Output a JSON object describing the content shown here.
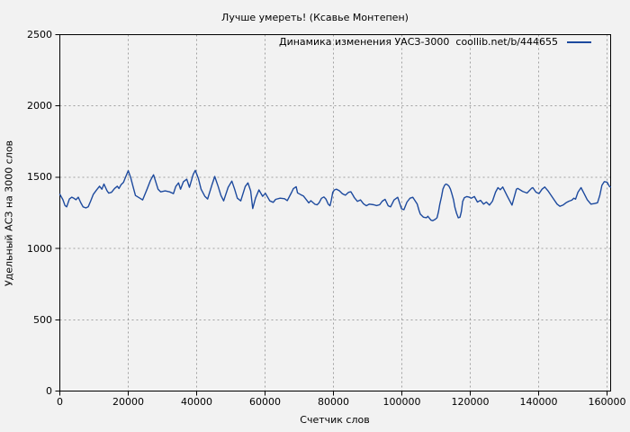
{
  "page": {
    "background": "#f2f2f2"
  },
  "chart_data": {
    "type": "line",
    "title": "Лучше умереть! (Ксавье Монтепен)",
    "xlabel": "Счетчик слов",
    "ylabel": "Удельный АСЗ на 3000 слов",
    "legend_label": "Динамика изменения УАСЗ-3000  coollib.net/b/444655",
    "legend_position": "top-right-inside",
    "grid": true,
    "xlim": [
      0,
      161000
    ],
    "ylim": [
      0,
      2500
    ],
    "xticks": [
      0,
      20000,
      40000,
      60000,
      80000,
      100000,
      120000,
      140000,
      160000
    ],
    "xtick_labels": [
      "0",
      "20000",
      "40000",
      "60000",
      "80000",
      "100000",
      "120000",
      "140000",
      "160000"
    ],
    "yticks": [
      0,
      500,
      1000,
      1500,
      2000,
      2500
    ],
    "ytick_labels": [
      "0",
      "500",
      "1000",
      "1500",
      "2000",
      "2500"
    ],
    "colors": {
      "line": "#1d4a9e",
      "grid": "#a0a0a0",
      "border": "#000000",
      "text": "#000000",
      "background": "#f2f2f2"
    },
    "series": [
      {
        "name": "Динамика изменения УАСЗ-3000 coollib.net/b/444655",
        "points": [
          [
            0,
            1380
          ],
          [
            900,
            1342
          ],
          [
            1500,
            1302
          ],
          [
            2000,
            1292
          ],
          [
            2800,
            1347
          ],
          [
            3500,
            1360
          ],
          [
            4100,
            1352
          ],
          [
            4700,
            1342
          ],
          [
            5400,
            1360
          ],
          [
            6100,
            1322
          ],
          [
            6800,
            1292
          ],
          [
            7600,
            1285
          ],
          [
            8300,
            1292
          ],
          [
            9000,
            1332
          ],
          [
            9800,
            1380
          ],
          [
            10700,
            1410
          ],
          [
            11600,
            1437
          ],
          [
            12300,
            1416
          ],
          [
            12900,
            1452
          ],
          [
            13800,
            1405
          ],
          [
            14300,
            1388
          ],
          [
            15100,
            1394
          ],
          [
            16000,
            1421
          ],
          [
            16800,
            1437
          ],
          [
            17300,
            1421
          ],
          [
            17900,
            1447
          ],
          [
            18600,
            1464
          ],
          [
            19300,
            1505
          ],
          [
            20000,
            1546
          ],
          [
            20700,
            1498
          ],
          [
            21400,
            1435
          ],
          [
            22100,
            1372
          ],
          [
            23400,
            1353
          ],
          [
            24200,
            1341
          ],
          [
            25500,
            1416
          ],
          [
            26500,
            1478
          ],
          [
            27400,
            1517
          ],
          [
            28700,
            1416
          ],
          [
            29500,
            1397
          ],
          [
            30800,
            1404
          ],
          [
            32100,
            1397
          ],
          [
            33200,
            1385
          ],
          [
            33900,
            1435
          ],
          [
            34700,
            1460
          ],
          [
            35300,
            1416
          ],
          [
            36100,
            1467
          ],
          [
            37100,
            1486
          ],
          [
            37900,
            1429
          ],
          [
            39000,
            1520
          ],
          [
            39600,
            1548
          ],
          [
            40500,
            1492
          ],
          [
            41300,
            1416
          ],
          [
            42400,
            1366
          ],
          [
            43200,
            1347
          ],
          [
            44500,
            1448
          ],
          [
            45300,
            1505
          ],
          [
            46300,
            1435
          ],
          [
            47100,
            1372
          ],
          [
            47900,
            1334
          ],
          [
            49200,
            1429
          ],
          [
            50300,
            1473
          ],
          [
            51100,
            1416
          ],
          [
            51900,
            1353
          ],
          [
            52900,
            1334
          ],
          [
            54200,
            1435
          ],
          [
            55000,
            1460
          ],
          [
            55800,
            1404
          ],
          [
            56400,
            1280
          ],
          [
            57200,
            1353
          ],
          [
            58200,
            1411
          ],
          [
            59300,
            1366
          ],
          [
            60100,
            1387
          ],
          [
            61400,
            1334
          ],
          [
            62400,
            1324
          ],
          [
            63100,
            1345
          ],
          [
            64400,
            1353
          ],
          [
            65700,
            1349
          ],
          [
            66500,
            1336
          ],
          [
            67800,
            1395
          ],
          [
            68300,
            1420
          ],
          [
            69100,
            1433
          ],
          [
            69500,
            1390
          ],
          [
            70400,
            1378
          ],
          [
            71200,
            1369
          ],
          [
            72100,
            1341
          ],
          [
            72800,
            1320
          ],
          [
            73400,
            1335
          ],
          [
            74600,
            1310
          ],
          [
            75200,
            1306
          ],
          [
            75800,
            1320
          ],
          [
            76500,
            1352
          ],
          [
            77200,
            1362
          ],
          [
            77800,
            1347
          ],
          [
            78500,
            1310
          ],
          [
            79000,
            1300
          ],
          [
            79400,
            1341
          ],
          [
            79800,
            1394
          ],
          [
            80300,
            1411
          ],
          [
            80900,
            1416
          ],
          [
            81700,
            1405
          ],
          [
            82600,
            1384
          ],
          [
            83500,
            1374
          ],
          [
            84400,
            1394
          ],
          [
            85100,
            1398
          ],
          [
            85700,
            1374
          ],
          [
            86100,
            1357
          ],
          [
            87000,
            1331
          ],
          [
            87900,
            1341
          ],
          [
            88800,
            1314
          ],
          [
            89600,
            1300
          ],
          [
            90500,
            1311
          ],
          [
            91800,
            1307
          ],
          [
            92600,
            1301
          ],
          [
            93500,
            1307
          ],
          [
            94300,
            1332
          ],
          [
            95100,
            1345
          ],
          [
            96000,
            1300
          ],
          [
            96700,
            1292
          ],
          [
            97700,
            1340
          ],
          [
            98800,
            1359
          ],
          [
            99900,
            1279
          ],
          [
            100600,
            1272
          ],
          [
            101500,
            1326
          ],
          [
            102400,
            1353
          ],
          [
            103200,
            1359
          ],
          [
            104500,
            1311
          ],
          [
            105000,
            1269
          ],
          [
            105400,
            1241
          ],
          [
            106300,
            1220
          ],
          [
            107200,
            1216
          ],
          [
            107600,
            1226
          ],
          [
            108100,
            1211
          ],
          [
            108500,
            1199
          ],
          [
            109000,
            1195
          ],
          [
            109800,
            1205
          ],
          [
            110300,
            1216
          ],
          [
            110700,
            1258
          ],
          [
            111100,
            1311
          ],
          [
            111600,
            1364
          ],
          [
            112000,
            1416
          ],
          [
            112500,
            1443
          ],
          [
            112900,
            1452
          ],
          [
            113300,
            1448
          ],
          [
            113800,
            1437
          ],
          [
            114200,
            1416
          ],
          [
            114600,
            1385
          ],
          [
            115100,
            1342
          ],
          [
            115500,
            1290
          ],
          [
            116000,
            1247
          ],
          [
            116500,
            1215
          ],
          [
            117000,
            1220
          ],
          [
            117400,
            1258
          ],
          [
            117800,
            1330
          ],
          [
            118300,
            1357
          ],
          [
            119000,
            1364
          ],
          [
            119700,
            1360
          ],
          [
            120300,
            1353
          ],
          [
            121200,
            1364
          ],
          [
            122100,
            1326
          ],
          [
            123000,
            1338
          ],
          [
            123900,
            1311
          ],
          [
            124700,
            1326
          ],
          [
            125600,
            1304
          ],
          [
            126500,
            1332
          ],
          [
            127400,
            1395
          ],
          [
            128100,
            1427
          ],
          [
            128800,
            1412
          ],
          [
            129500,
            1431
          ],
          [
            130900,
            1364
          ],
          [
            132200,
            1304
          ],
          [
            133500,
            1416
          ],
          [
            133900,
            1422
          ],
          [
            135300,
            1401
          ],
          [
            136600,
            1389
          ],
          [
            137900,
            1422
          ],
          [
            138300,
            1427
          ],
          [
            139200,
            1395
          ],
          [
            140100,
            1385
          ],
          [
            141000,
            1416
          ],
          [
            141800,
            1431
          ],
          [
            142700,
            1405
          ],
          [
            143600,
            1374
          ],
          [
            144500,
            1342
          ],
          [
            145400,
            1311
          ],
          [
            146200,
            1296
          ],
          [
            147100,
            1304
          ],
          [
            148000,
            1321
          ],
          [
            148900,
            1332
          ],
          [
            149700,
            1339
          ],
          [
            150300,
            1353
          ],
          [
            150800,
            1346
          ],
          [
            151500,
            1395
          ],
          [
            152400,
            1427
          ],
          [
            153300,
            1385
          ],
          [
            154200,
            1342
          ],
          [
            155300,
            1311
          ],
          [
            156300,
            1315
          ],
          [
            157200,
            1321
          ],
          [
            157900,
            1374
          ],
          [
            158500,
            1443
          ],
          [
            159200,
            1469
          ],
          [
            160000,
            1465
          ],
          [
            160700,
            1435
          ],
          [
            161000,
            1431
          ]
        ]
      }
    ]
  }
}
